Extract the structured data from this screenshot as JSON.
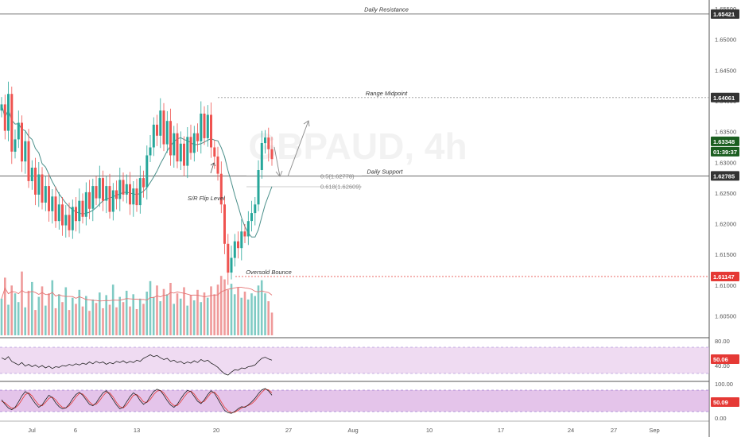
{
  "chart_data": {
    "type": "candlestick",
    "symbol_watermark": "GBPAUD, 4h",
    "price_axis": {
      "ticks": [
        "1.65500",
        "1.65000",
        "1.64500",
        "1.64000",
        "1.63500",
        "1.63000",
        "1.62500",
        "1.62000",
        "1.61500",
        "1.61000",
        "1.60500"
      ],
      "ylim": [
        1.6015,
        1.6565
      ]
    },
    "time_axis": {
      "ticks": [
        "Jul",
        "6",
        "13",
        "20",
        "27",
        "Aug",
        "10",
        "17",
        "24",
        "27",
        "Sep"
      ]
    },
    "horizontal_levels": [
      {
        "label": "Daily Resistance",
        "value": 1.65421,
        "tag": "1.65421",
        "color": "#555555"
      },
      {
        "label": "Range Midpoint",
        "value": 1.64061,
        "tag": "1.64061",
        "color": "#999999"
      },
      {
        "label": "Daily Support",
        "value": 1.62785,
        "tag": "1.62785",
        "color": "#555555"
      },
      {
        "label": "Oversold Bounce",
        "value": 1.61147,
        "tag": "1.61147",
        "color": "#e53935"
      }
    ],
    "fibonacci": [
      {
        "label": "0.5(1.62778)",
        "value": 1.62778
      },
      {
        "label": "0.618(1.62609)",
        "value": 1.62609
      }
    ],
    "annotations": [
      {
        "text": "S/R Flip Level"
      }
    ],
    "current_price": {
      "value": 1.63348,
      "tag": "1.63348",
      "countdown": "01:39:37",
      "color": "#1b5e20"
    },
    "close_series": [
      1.6395,
      1.6352,
      1.6412,
      1.6318,
      1.6338,
      1.6365,
      1.6302,
      1.6335,
      1.627,
      1.6292,
      1.6248,
      1.6281,
      1.6235,
      1.6262,
      1.6221,
      1.6245,
      1.6205,
      1.6232,
      1.6198,
      1.6215,
      1.619,
      1.6228,
      1.6205,
      1.6238,
      1.6212,
      1.6252,
      1.6225,
      1.6262,
      1.6242,
      1.6275,
      1.6238,
      1.6262,
      1.622,
      1.6255,
      1.6241,
      1.6272,
      1.6248,
      1.6265,
      1.6232,
      1.6258,
      1.6231,
      1.6275,
      1.626,
      1.6312,
      1.6325,
      1.6362,
      1.6344,
      1.6385,
      1.633,
      1.6368,
      1.6312,
      1.6348,
      1.6302,
      1.6331,
      1.6295,
      1.6342,
      1.6316,
      1.6348,
      1.6335,
      1.638,
      1.634,
      1.6378,
      1.6325,
      1.631,
      1.6282,
      1.6232,
      1.6168,
      1.6121,
      1.6145,
      1.6172,
      1.6161,
      1.6188,
      1.618,
      1.6205,
      1.6218,
      1.6232,
      1.6288,
      1.6332,
      1.6341,
      1.6322,
      1.6306
    ],
    "volume_series": [
      0.42,
      0.66,
      0.35,
      0.57,
      0.48,
      0.38,
      0.73,
      0.32,
      0.51,
      0.61,
      0.29,
      0.44,
      0.56,
      0.34,
      0.48,
      0.63,
      0.31,
      0.47,
      0.38,
      0.55,
      0.29,
      0.43,
      0.36,
      0.52,
      0.33,
      0.45,
      0.28,
      0.41,
      0.37,
      0.49,
      0.31,
      0.46,
      0.35,
      0.58,
      0.32,
      0.44,
      0.38,
      0.51,
      0.33,
      0.47,
      0.3,
      0.42,
      0.36,
      0.5,
      0.62,
      0.44,
      0.57,
      0.39,
      0.53,
      0.47,
      0.6,
      0.36,
      0.48,
      0.42,
      0.55,
      0.34,
      0.46,
      0.4,
      0.52,
      0.38,
      0.49,
      0.43,
      0.56,
      0.47,
      0.58,
      0.68,
      0.64,
      0.52,
      0.59,
      0.47,
      0.55,
      0.43,
      0.5,
      0.41,
      0.48,
      0.45,
      0.57,
      0.63,
      0.48,
      0.39,
      0.26
    ],
    "rsi": {
      "value": 50.06,
      "tag": "50.06",
      "ticks": [
        "80.00",
        "40.00"
      ],
      "series": [
        58,
        55,
        60,
        52,
        49,
        46,
        50,
        44,
        47,
        43,
        46,
        42,
        45,
        41,
        44,
        40,
        43,
        42,
        45,
        44,
        47,
        45,
        48,
        46,
        49,
        47,
        51,
        48,
        52,
        49,
        51,
        47,
        50,
        48,
        52,
        50,
        53,
        49,
        52,
        50,
        54,
        52,
        57,
        60,
        63,
        60,
        62,
        58,
        55,
        57,
        52,
        54,
        50,
        52,
        48,
        51,
        49,
        53,
        50,
        55,
        52,
        54,
        49,
        46,
        42,
        36,
        31,
        29,
        34,
        38,
        37,
        41,
        40,
        43,
        44,
        46,
        52,
        57,
        59,
        56,
        54
      ],
      "band": [
        40,
        70
      ]
    },
    "stoch": {
      "value": 50.09,
      "tag": "50.09",
      "ticks": [
        "100.00",
        "0.00"
      ],
      "k_series": [
        55,
        40,
        28,
        22,
        30,
        48,
        68,
        82,
        75,
        58,
        42,
        30,
        38,
        55,
        70,
        62,
        45,
        32,
        25,
        28,
        40,
        58,
        72,
        80,
        70,
        55,
        40,
        35,
        45,
        62,
        78,
        85,
        72,
        55,
        38,
        25,
        30,
        48,
        65,
        78,
        70,
        52,
        40,
        48,
        66,
        82,
        90,
        85,
        70,
        52,
        38,
        30,
        40,
        58,
        74,
        86,
        82,
        66,
        50,
        42,
        55,
        72,
        85,
        76,
        58,
        38,
        20,
        12,
        10,
        16,
        25,
        32,
        30,
        38,
        48,
        60,
        75,
        88,
        92,
        84,
        70
      ],
      "d_series": [
        50,
        45,
        35,
        27,
        28,
        38,
        55,
        72,
        78,
        68,
        52,
        38,
        35,
        46,
        60,
        64,
        55,
        40,
        30,
        28,
        35,
        48,
        64,
        76,
        74,
        62,
        48,
        38,
        40,
        52,
        68,
        80,
        78,
        64,
        46,
        32,
        28,
        38,
        54,
        70,
        72,
        62,
        48,
        46,
        56,
        72,
        84,
        86,
        78,
        62,
        46,
        36,
        36,
        48,
        64,
        78,
        84,
        74,
        58,
        46,
        50,
        64,
        78,
        80,
        68,
        48,
        30,
        18,
        12,
        14,
        20,
        28,
        32,
        36,
        42,
        52,
        66,
        80,
        90,
        88,
        78
      ],
      "band": [
        20,
        80
      ]
    }
  }
}
